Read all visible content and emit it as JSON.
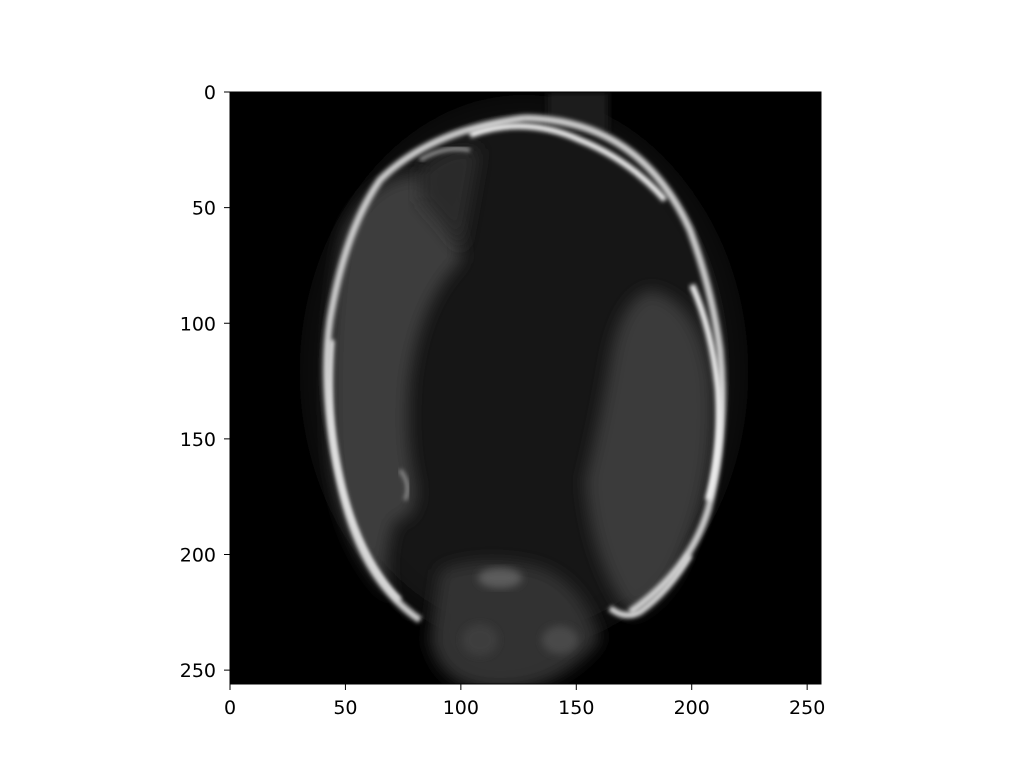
{
  "image": {
    "description_name": "grayscale-ct-slice",
    "colormap": "gray",
    "background_color": "#000000",
    "extent": {
      "x": [
        0,
        256
      ],
      "y": [
        0,
        256
      ]
    }
  },
  "axes": {
    "x": {
      "ticks": [
        0,
        50,
        100,
        150,
        200,
        250
      ],
      "tick_labels": [
        "0",
        "50",
        "100",
        "150",
        "200",
        "250"
      ]
    },
    "y": {
      "ticks": [
        0,
        50,
        100,
        150,
        200,
        250
      ],
      "tick_labels": [
        "0",
        "50",
        "100",
        "150",
        "200",
        "250"
      ],
      "inverted": true
    },
    "spine_color": "#000000"
  }
}
